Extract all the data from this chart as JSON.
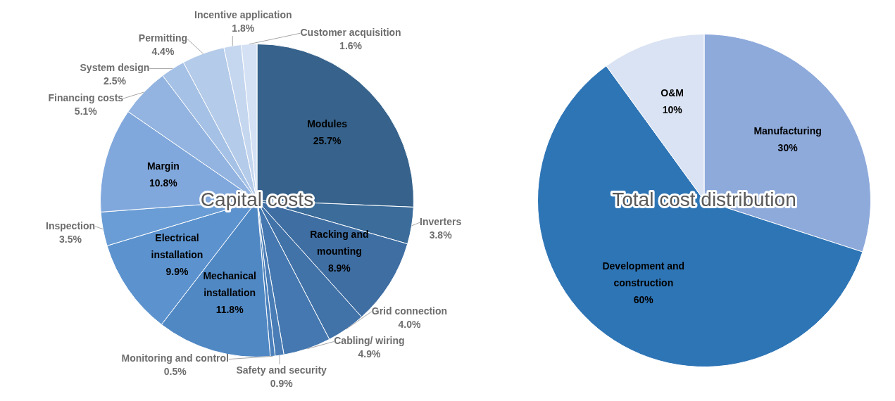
{
  "chart_data": [
    {
      "type": "pie",
      "title": "Capital costs",
      "categories": [
        "Modules",
        "Inverters",
        "Racking and mounting",
        "Grid connection",
        "Cabling/ wiring",
        "Safety and security",
        "Monitoring and control",
        "Mechanical installation",
        "Electrical installation",
        "Inspection",
        "Margin",
        "Financing costs",
        "System design",
        "Permitting",
        "Incentive application",
        "Customer acquisition"
      ],
      "values": [
        25.7,
        3.8,
        8.9,
        4.0,
        4.9,
        0.9,
        0.5,
        11.8,
        9.9,
        3.5,
        10.8,
        5.1,
        2.5,
        4.4,
        1.8,
        1.6
      ],
      "value_labels": [
        "25.7%",
        "3.8%",
        "8.9%",
        "4.0%",
        "4.9%",
        "0.9%",
        "0.5%",
        "11.8%",
        "9.9%",
        "3.5%",
        "10.8%",
        "5.1%",
        "2.5%",
        "4.4%",
        "1.8%",
        "1.6%"
      ],
      "colors": [
        "#36628b",
        "#3b6c9a",
        "#3f6ea3",
        "#4172a8",
        "#4578b0",
        "#4a7db6",
        "#4b80bb",
        "#5088c4",
        "#5c93cf",
        "#6a9dd5",
        "#81a8dc",
        "#93b4e0",
        "#a6c1e6",
        "#b4cbe9",
        "#c5d6ef",
        "#d4e1f4"
      ]
    },
    {
      "type": "pie",
      "title": "Total cost distribution",
      "categories": [
        "Manufacturing",
        "Development and construction",
        "O&M"
      ],
      "values": [
        30,
        60,
        10
      ],
      "value_labels": [
        "30%",
        "60%",
        "10%"
      ],
      "colors": [
        "#8eaadb",
        "#2e75b6",
        "#dae3f3"
      ]
    }
  ]
}
